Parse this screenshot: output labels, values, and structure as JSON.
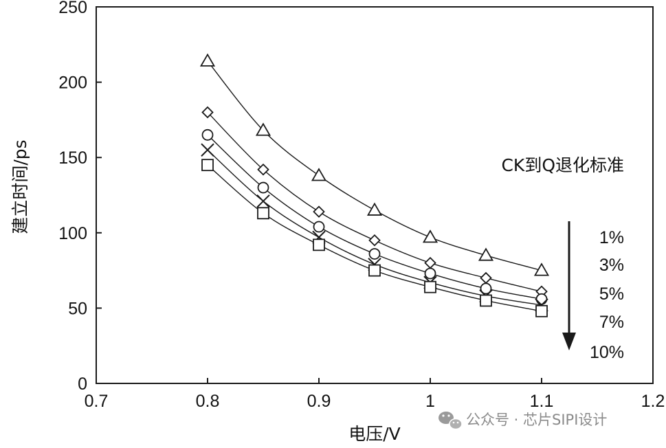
{
  "chart_data": {
    "type": "line",
    "xlabel": "电压/V",
    "ylabel": "建立时间/ps",
    "xlim": [
      0.7,
      1.2
    ],
    "ylim": [
      0,
      250
    ],
    "xticks": [
      "0.7",
      "0.8",
      "0.9",
      "1",
      "1.1",
      "1.2"
    ],
    "yticks": [
      "0",
      "50",
      "100",
      "150",
      "200",
      "250"
    ],
    "grid": false,
    "annotation": "CK到Q退化标准",
    "x": [
      0.8,
      0.85,
      0.9,
      0.95,
      1.0,
      1.05,
      1.1
    ],
    "series": [
      {
        "name": "1%",
        "marker": "triangle",
        "values": [
          214,
          168,
          138,
          115,
          97,
          85,
          75
        ]
      },
      {
        "name": "3%",
        "marker": "diamond",
        "values": [
          180,
          142,
          114,
          95,
          80,
          70,
          61
        ]
      },
      {
        "name": "5%",
        "marker": "circle",
        "values": [
          165,
          130,
          104,
          86,
          73,
          63,
          56
        ]
      },
      {
        "name": "7%",
        "marker": "x",
        "values": [
          155,
          121,
          97,
          79,
          67,
          58,
          52
        ]
      },
      {
        "name": "10%",
        "marker": "square",
        "values": [
          145,
          113,
          92,
          75,
          64,
          55,
          48
        ]
      }
    ],
    "legend_placement": "right",
    "colors": {
      "line": "#1a1a1a",
      "text": "#111111"
    }
  },
  "watermark": {
    "text": "公众号 · 芯片SIPI设计",
    "icon": "wechat-icon"
  }
}
